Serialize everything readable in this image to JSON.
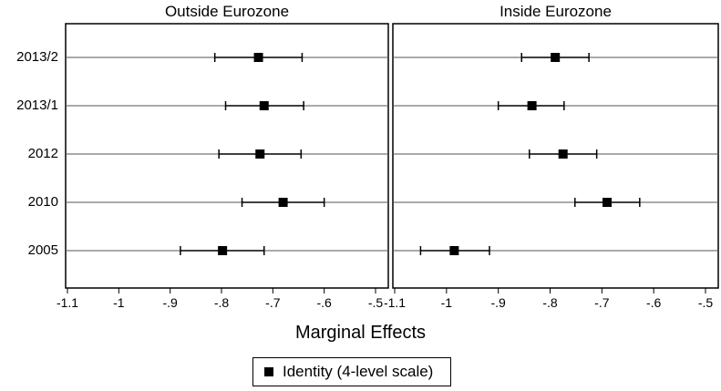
{
  "chart_data": {
    "type": "scatter",
    "xlabel": "Marginal Effects",
    "xlim": [
      -1.1,
      -0.5
    ],
    "xticks": [
      -1.1,
      -1,
      -0.9,
      -0.8,
      -0.7,
      -0.6,
      -0.5
    ],
    "xtick_labels": [
      "-1.1",
      "-1",
      "-.9",
      "-.8",
      "-.7",
      "-.6",
      "-.5"
    ],
    "categories": [
      "2013/2",
      "2013/1",
      "2012",
      "2010",
      "2005"
    ],
    "legend": {
      "label": "Identity (4-level scale)",
      "placement": "bottom"
    },
    "grid": true,
    "panels": [
      {
        "title": "Outside Eurozone",
        "points": [
          {
            "category": "2013/2",
            "estimate": -0.728,
            "lower": -0.813,
            "upper": -0.643
          },
          {
            "category": "2013/1",
            "estimate": -0.717,
            "lower": -0.792,
            "upper": -0.64
          },
          {
            "category": "2012",
            "estimate": -0.725,
            "lower": -0.805,
            "upper": -0.645
          },
          {
            "category": "2010",
            "estimate": -0.68,
            "lower": -0.76,
            "upper": -0.6
          },
          {
            "category": "2005",
            "estimate": -0.798,
            "lower": -0.88,
            "upper": -0.717
          }
        ]
      },
      {
        "title": "Inside Eurozone",
        "points": [
          {
            "category": "2013/2",
            "estimate": -0.79,
            "lower": -0.855,
            "upper": -0.725
          },
          {
            "category": "2013/1",
            "estimate": -0.835,
            "lower": -0.9,
            "upper": -0.773
          },
          {
            "category": "2012",
            "estimate": -0.775,
            "lower": -0.84,
            "upper": -0.71
          },
          {
            "category": "2010",
            "estimate": -0.69,
            "lower": -0.752,
            "upper": -0.627
          },
          {
            "category": "2005",
            "estimate": -0.985,
            "lower": -1.05,
            "upper": -0.917
          }
        ]
      }
    ]
  }
}
